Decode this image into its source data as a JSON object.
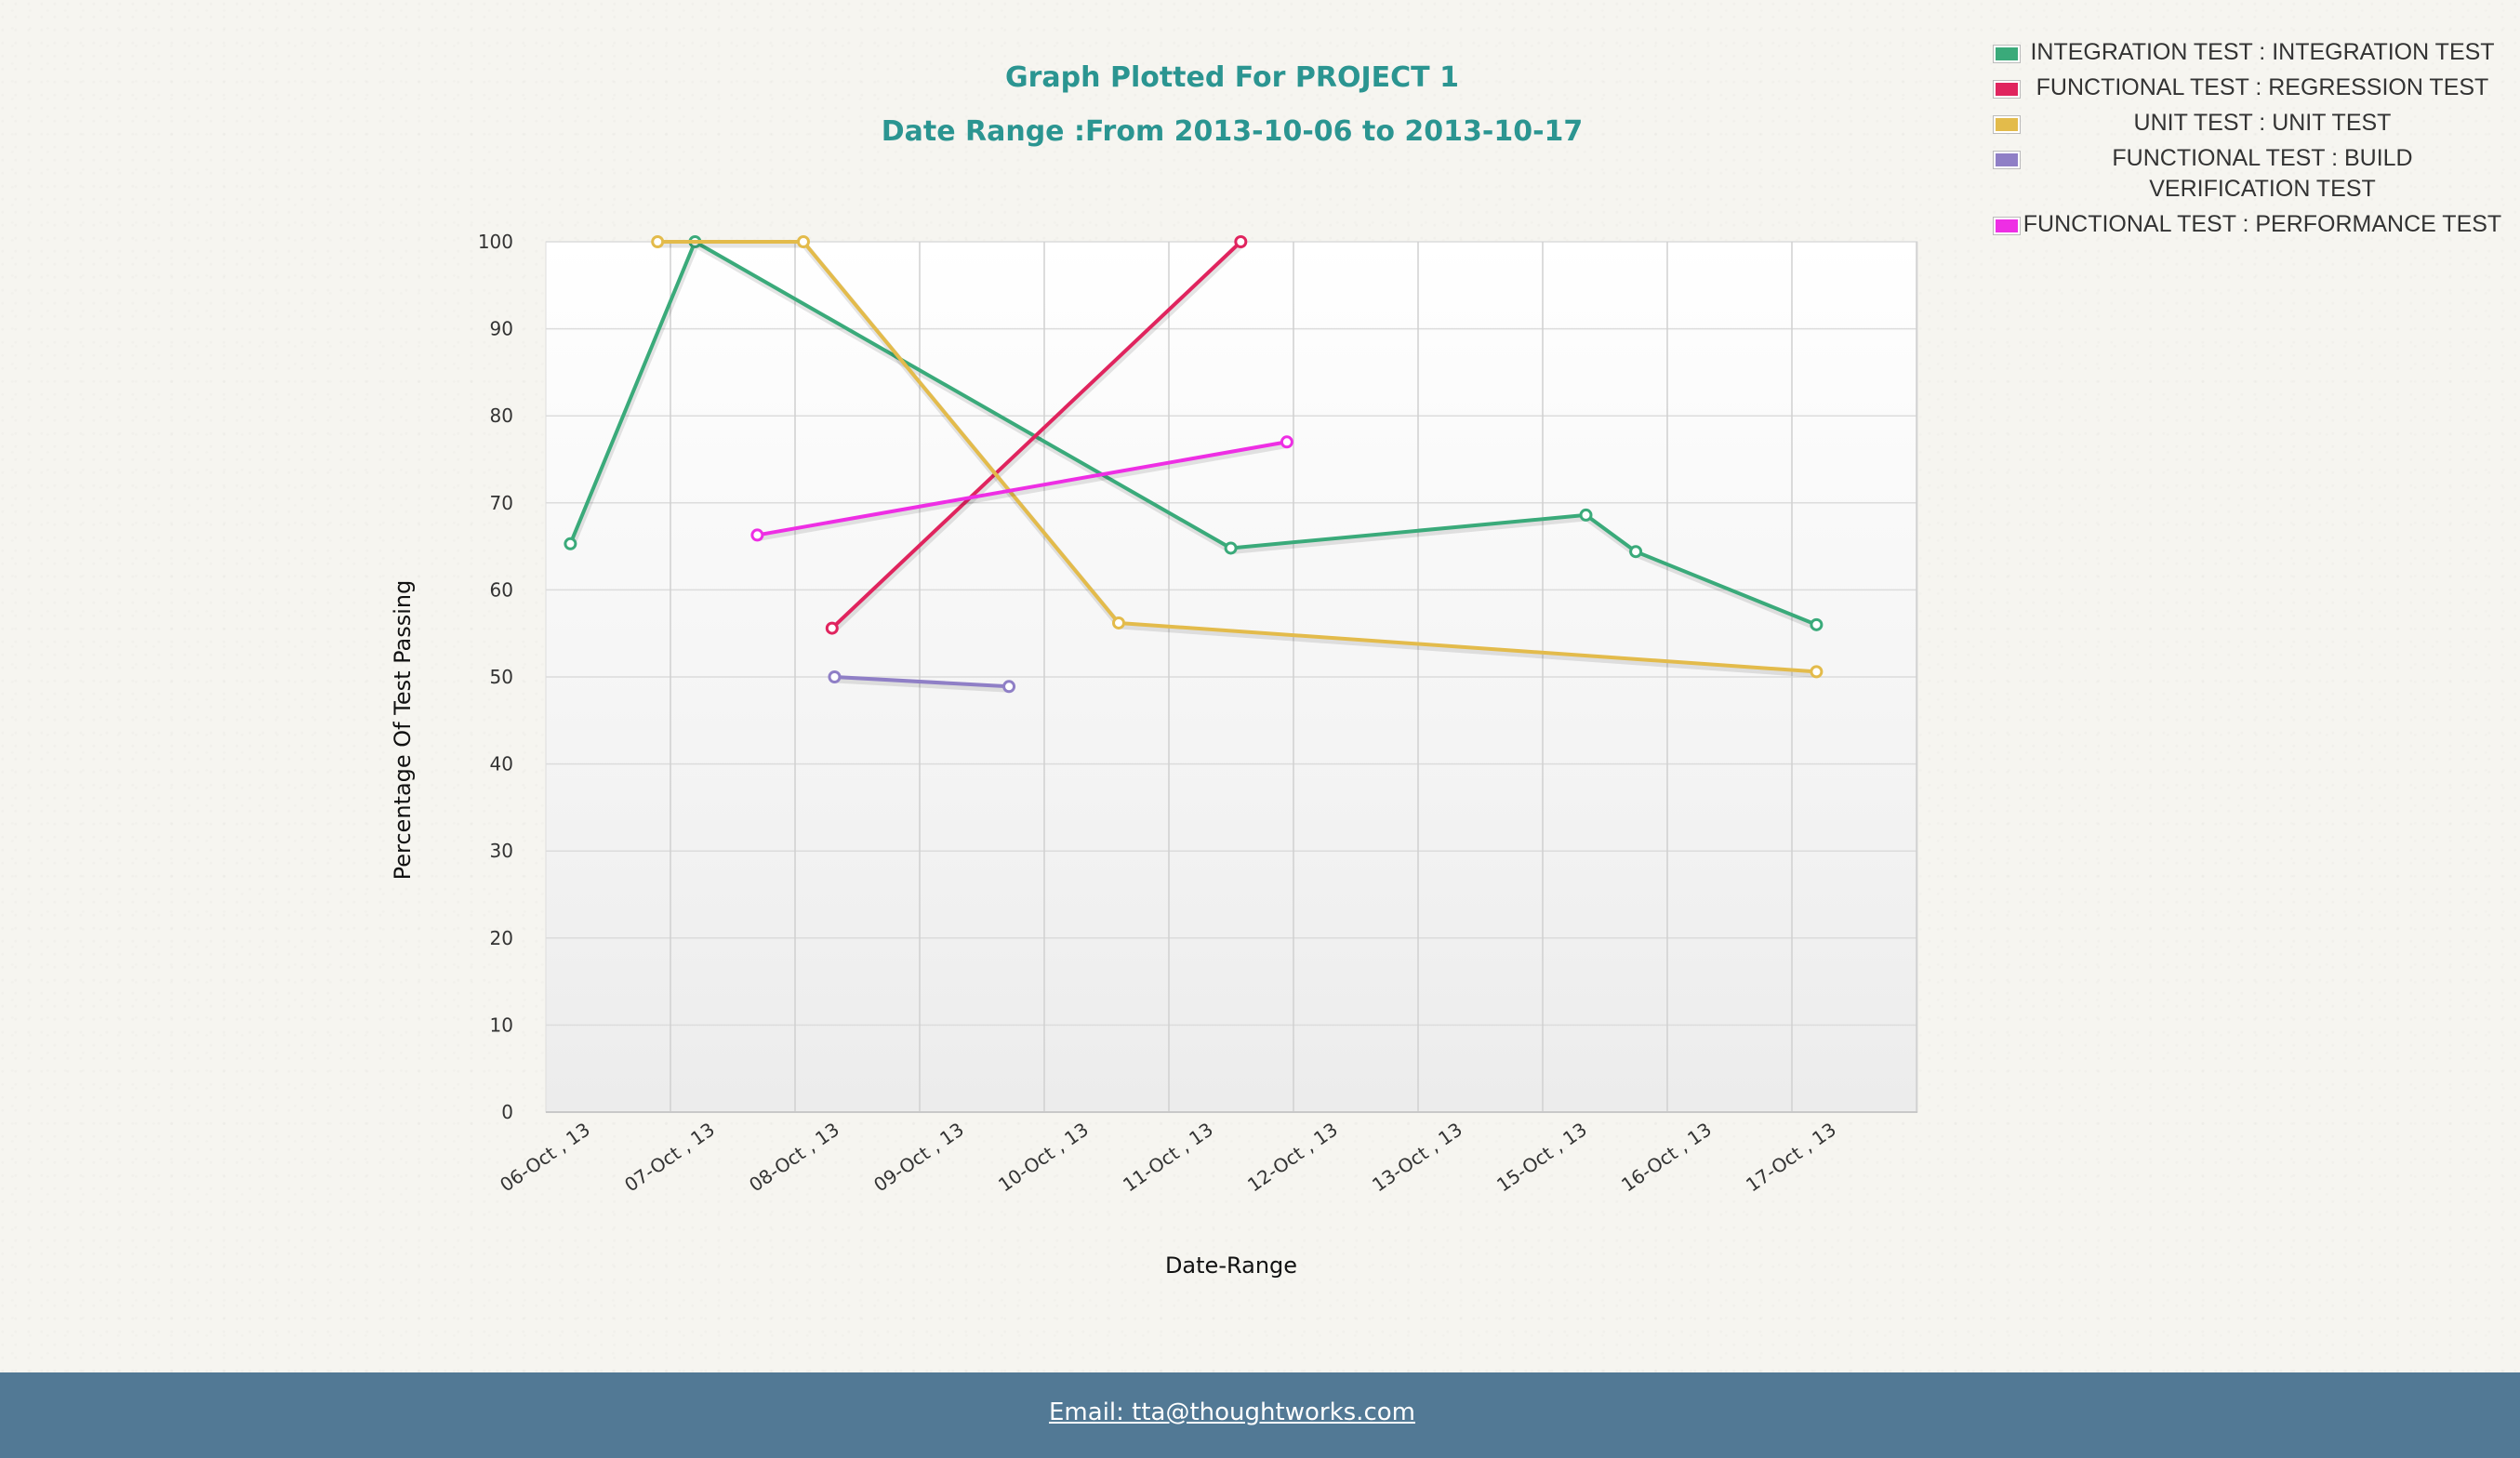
{
  "page": {
    "title": "Graph Plotted For PROJECT 1",
    "subtitle": "Date Range :From 2013-10-06 to 2013-10-17",
    "footer_email": "Email: tta@thoughtworks.com"
  },
  "chart_data": {
    "type": "line",
    "title": "Graph Plotted For PROJECT 1",
    "subtitle": "Date Range :From 2013-10-06 to 2013-10-17",
    "xlabel": "Date-Range",
    "ylabel": "Percentage Of Test Passing",
    "categories": [
      "06-Oct , 13",
      "07-Oct , 13",
      "08-Oct , 13",
      "09-Oct , 13",
      "10-Oct , 13",
      "11-Oct , 13",
      "12-Oct , 13",
      "13-Oct , 13",
      "15-Oct , 13",
      "16-Oct , 13",
      "17-Oct , 13"
    ],
    "ylim": [
      0,
      100
    ],
    "yticks": [
      0,
      10,
      20,
      30,
      40,
      50,
      60,
      70,
      80,
      90,
      100
    ],
    "grid": true,
    "legend_position": "top-right",
    "series": [
      {
        "name": "INTEGRATION TEST : INTEGRATION TEST",
        "color": "#3aaa7a",
        "x": [
          0.1,
          1.1,
          5.4,
          8.25,
          8.65,
          10.1
        ],
        "y": [
          65.3,
          100,
          64.8,
          68.6,
          64.4,
          56
        ]
      },
      {
        "name": "FUNCTIONAL TEST : REGRESSION TEST",
        "color": "#e0245e",
        "x": [
          2.2,
          5.48
        ],
        "y": [
          55.6,
          100
        ]
      },
      {
        "name": "UNIT TEST : UNIT TEST",
        "color": "#e3bb4b",
        "x": [
          0.8,
          1.97,
          4.5,
          10.1
        ],
        "y": [
          100,
          100,
          56.2,
          50.6
        ]
      },
      {
        "name": "FUNCTIONAL TEST : BUILD VERIFICATION TEST",
        "color": "#8f7fc6",
        "x": [
          2.22,
          3.62
        ],
        "y": [
          50,
          48.9
        ]
      },
      {
        "name": "FUNCTIONAL TEST : PERFORMANCE TEST",
        "color": "#ee2ee4",
        "x": [
          1.6,
          5.85
        ],
        "y": [
          66.3,
          77
        ]
      }
    ]
  }
}
